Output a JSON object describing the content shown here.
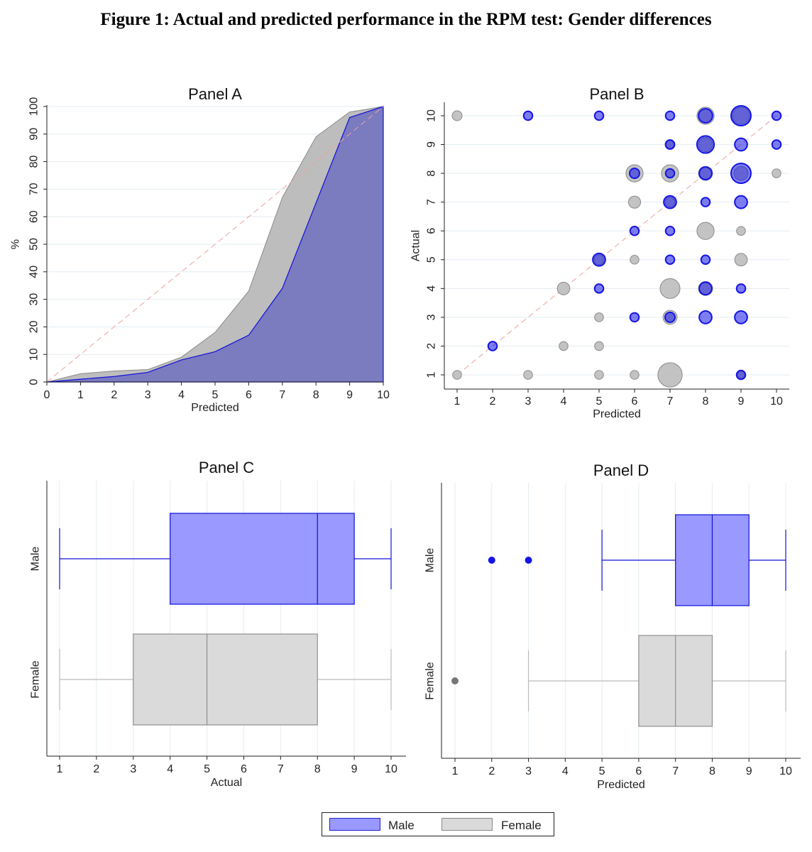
{
  "figure_title": "Figure 1: Actual and predicted performance in the RPM test: Gender differences",
  "colors": {
    "male_fill": "#7b7bbf",
    "male_fill_box": "#9999ff",
    "male_line": "#1010dd",
    "male_dot": "#1414e6",
    "female_fill": "#bdbdbd",
    "female_line": "#8a8a8a",
    "female_box": "#dadada",
    "diagonal": "#f0a0a0",
    "grid": "#e3ecf2"
  },
  "legend": {
    "items": [
      {
        "label": "Male",
        "color": "#9999ff",
        "border": "#2222cc"
      },
      {
        "label": "Female",
        "color": "#dadada",
        "border": "#888888"
      }
    ]
  },
  "chart_data": [
    {
      "id": "panel-a",
      "type": "area",
      "title": "Panel A",
      "xlabel": "Predicted",
      "ylabel": "%",
      "xlim": [
        0,
        10
      ],
      "ylim": [
        0,
        100
      ],
      "x_ticks": [
        "0",
        "1",
        "2",
        "3",
        "4",
        "5",
        "6",
        "7",
        "8",
        "9",
        "10"
      ],
      "y_ticks": [
        "0",
        "10",
        "20",
        "30",
        "40",
        "50",
        "60",
        "70",
        "80",
        "90",
        "100"
      ],
      "x": [
        0,
        1,
        2,
        3,
        4,
        5,
        6,
        7,
        8,
        9,
        10
      ],
      "series": [
        {
          "name": "Female",
          "values": [
            0,
            3,
            4,
            4.5,
            9,
            18,
            33,
            67,
            89,
            98,
            100
          ]
        },
        {
          "name": "Male",
          "values": [
            0,
            1,
            2,
            3.5,
            8,
            11,
            17,
            34,
            65,
            96,
            100
          ]
        }
      ],
      "reference_line": {
        "from": [
          0,
          0
        ],
        "to": [
          10,
          100
        ]
      }
    },
    {
      "id": "panel-b",
      "type": "scatter",
      "title": "Panel B",
      "xlabel": "Predicted",
      "ylabel": "Actual",
      "xlim": [
        1,
        10
      ],
      "ylim": [
        1,
        10
      ],
      "x_ticks": [
        "1",
        "2",
        "3",
        "4",
        "5",
        "6",
        "7",
        "8",
        "9",
        "10"
      ],
      "y_ticks": [
        "1",
        "2",
        "3",
        "4",
        "5",
        "6",
        "7",
        "8",
        "9",
        "10"
      ],
      "reference_line": {
        "from": [
          1,
          1
        ],
        "to": [
          10,
          10
        ]
      },
      "series": [
        {
          "name": "Female",
          "points": [
            [
              1,
              10,
              1
            ],
            [
              5,
              5,
              1
            ],
            [
              6,
              8,
              3
            ],
            [
              6,
              7,
              1.5
            ],
            [
              7,
              8,
              3
            ],
            [
              7,
              9,
              1
            ],
            [
              7,
              7,
              1
            ],
            [
              7,
              4,
              4
            ],
            [
              7,
              3,
              2
            ],
            [
              7,
              1,
              6
            ],
            [
              8,
              10,
              3
            ],
            [
              8,
              9,
              2
            ],
            [
              8,
              8,
              2
            ],
            [
              8,
              6,
              3
            ],
            [
              8,
              4,
              2
            ],
            [
              9,
              10,
              3
            ],
            [
              9,
              8,
              2
            ],
            [
              9,
              6,
              0.8
            ],
            [
              9,
              5,
              1.6
            ],
            [
              10,
              8,
              0.8
            ],
            [
              4,
              4,
              1.6
            ],
            [
              4,
              2,
              0.8
            ],
            [
              5,
              3,
              0.8
            ],
            [
              5,
              2,
              0.8
            ],
            [
              6,
              5,
              0.8
            ],
            [
              1,
              1,
              0.8
            ],
            [
              3,
              1,
              0.8
            ],
            [
              5,
              1,
              0.8
            ],
            [
              6,
              1,
              0.8
            ],
            [
              9,
              1,
              0.5
            ]
          ]
        },
        {
          "name": "Male",
          "points": [
            [
              3,
              10,
              0.8
            ],
            [
              5,
              10,
              0.8
            ],
            [
              7,
              10,
              0.8
            ],
            [
              8,
              10,
              2
            ],
            [
              9,
              10,
              4
            ],
            [
              10,
              10,
              0.8
            ],
            [
              7,
              9,
              0.8
            ],
            [
              8,
              9,
              3
            ],
            [
              9,
              9,
              1.6
            ],
            [
              10,
              9,
              0.8
            ],
            [
              6,
              8,
              1
            ],
            [
              7,
              8,
              0.8
            ],
            [
              8,
              8,
              1.6
            ],
            [
              9,
              8,
              4
            ],
            [
              7,
              7,
              1.6
            ],
            [
              8,
              7,
              0.8
            ],
            [
              9,
              7,
              1.6
            ],
            [
              6,
              6,
              0.8
            ],
            [
              7,
              6,
              0.8
            ],
            [
              5,
              5,
              1.6
            ],
            [
              7,
              5,
              0.8
            ],
            [
              8,
              5,
              0.8
            ],
            [
              5,
              4,
              0.8
            ],
            [
              8,
              4,
              1.6
            ],
            [
              9,
              4,
              0.8
            ],
            [
              6,
              3,
              0.8
            ],
            [
              7,
              3,
              1
            ],
            [
              8,
              3,
              1.6
            ],
            [
              9,
              3,
              1.6
            ],
            [
              2,
              2,
              0.8
            ],
            [
              9,
              1,
              0.8
            ]
          ]
        }
      ]
    },
    {
      "id": "panel-c",
      "type": "box",
      "title": "Panel C",
      "xlabel": "Actual",
      "xlim": [
        1,
        10
      ],
      "x_ticks": [
        "1",
        "2",
        "3",
        "4",
        "5",
        "6",
        "7",
        "8",
        "9",
        "10"
      ],
      "groups": [
        {
          "name": "Male",
          "min": 1,
          "q1": 4,
          "median": 8,
          "q3": 9,
          "max": 10,
          "outliers": []
        },
        {
          "name": "Female",
          "min": 1,
          "q1": 3,
          "median": 5,
          "q3": 8,
          "max": 10,
          "outliers": []
        }
      ]
    },
    {
      "id": "panel-d",
      "type": "box",
      "title": "Panel D",
      "xlabel": "Predicted",
      "xlim": [
        1,
        10
      ],
      "x_ticks": [
        "1",
        "2",
        "3",
        "4",
        "5",
        "6",
        "7",
        "8",
        "9",
        "10"
      ],
      "groups": [
        {
          "name": "Male",
          "min": 5,
          "q1": 7,
          "median": 8,
          "q3": 9,
          "max": 10,
          "outliers": [
            2,
            3
          ]
        },
        {
          "name": "Female",
          "min": 3,
          "q1": 6,
          "median": 7,
          "q3": 8,
          "max": 10,
          "outliers": [
            1
          ]
        }
      ]
    }
  ]
}
